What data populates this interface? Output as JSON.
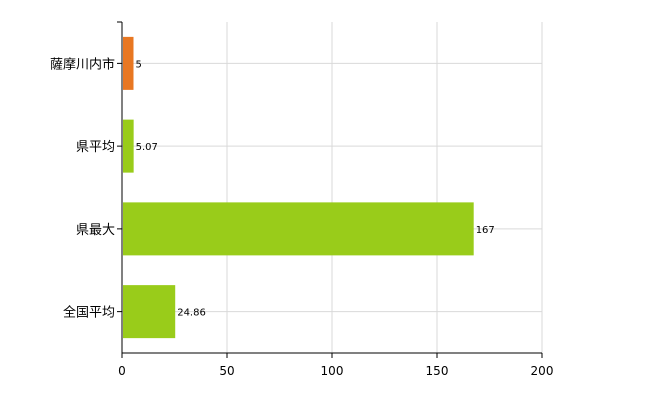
{
  "chart_data": {
    "type": "bar",
    "orientation": "horizontal",
    "categories": [
      "薩摩川内市",
      "県平均",
      "県最大",
      "全国平均"
    ],
    "values": [
      5,
      5.07,
      167,
      24.86
    ],
    "value_labels": [
      "5",
      "5.07",
      "167",
      "24.86"
    ],
    "colors": [
      "#e87722",
      "#99cc1a",
      "#99cc1a",
      "#99cc1a"
    ],
    "xlim": [
      0,
      200
    ],
    "xticks": [
      "0",
      "50",
      "100",
      "150",
      "200"
    ],
    "grid": true,
    "legend": "none",
    "title": "",
    "xlabel": "",
    "ylabel": ""
  }
}
